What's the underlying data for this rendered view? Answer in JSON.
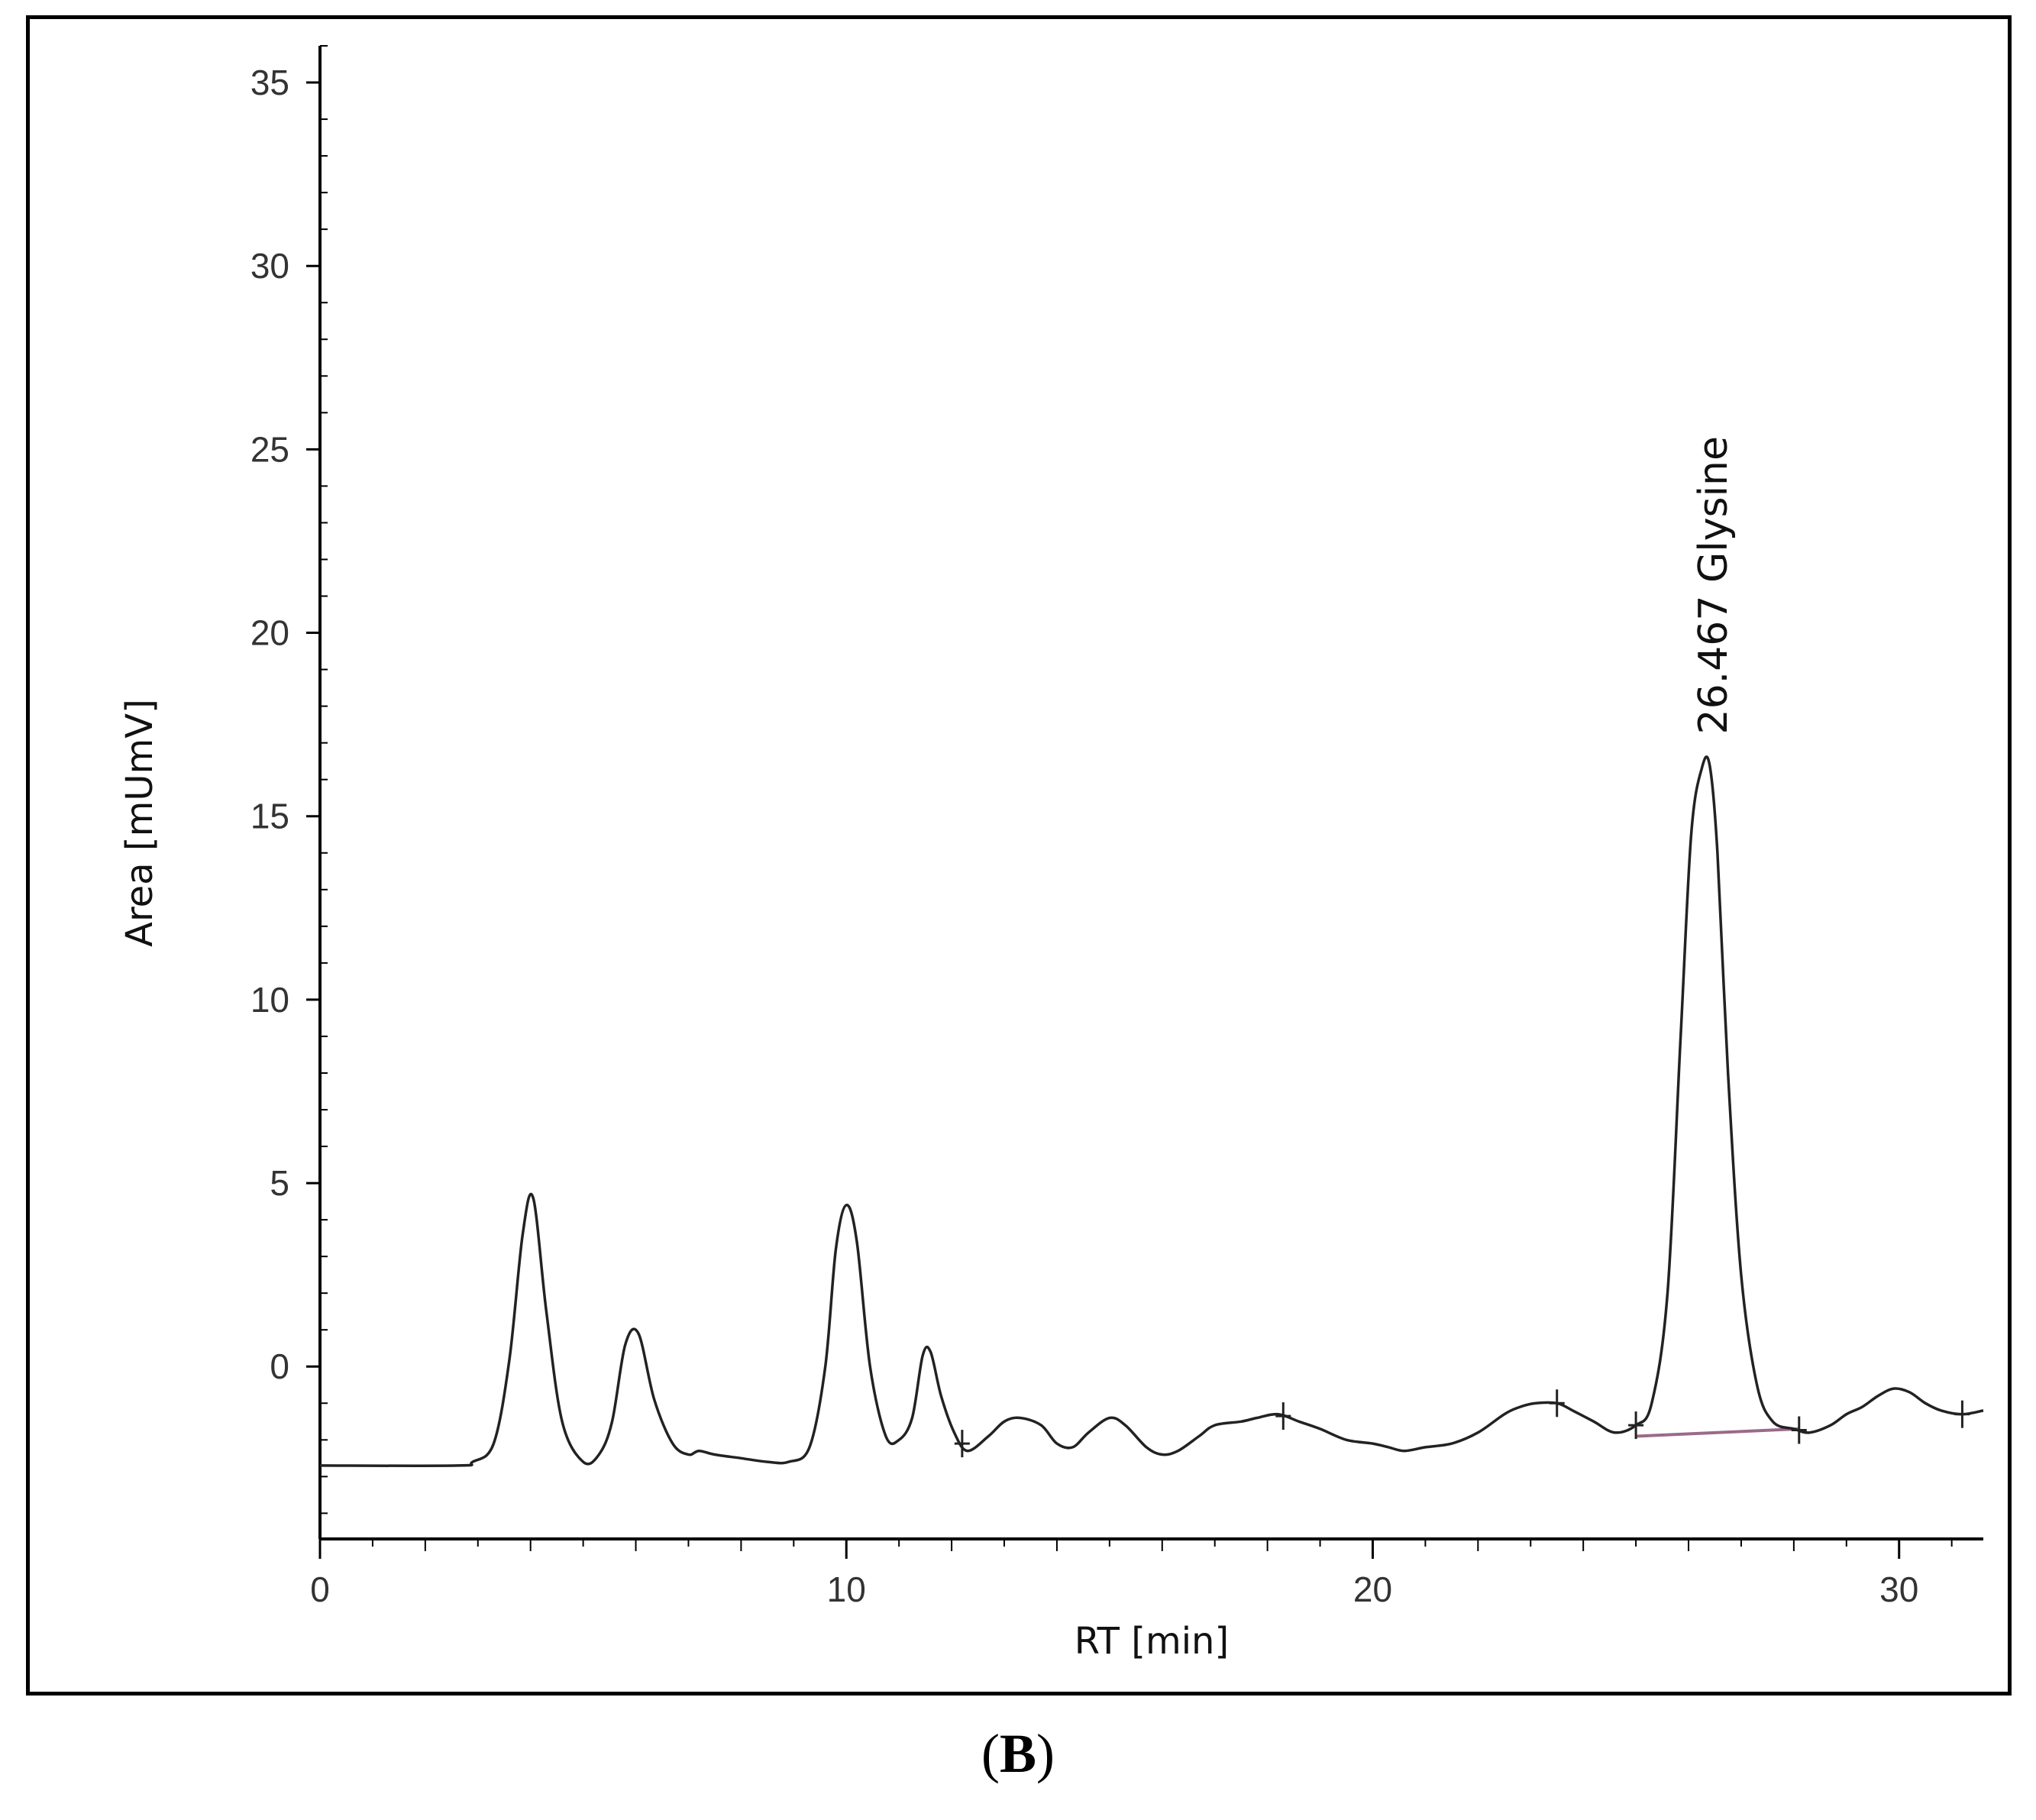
{
  "caption": {
    "open": "(",
    "letter": "B",
    "close": ")"
  },
  "chart_data": {
    "type": "line",
    "xlabel": "RT [min]",
    "ylabel": "Area [mUmV]",
    "xlim": [
      0,
      31.6
    ],
    "ylim": [
      -4.7,
      36
    ],
    "x_ticks": [
      0,
      10,
      20,
      30
    ],
    "y_ticks": [
      0,
      5,
      10,
      15,
      20,
      25,
      30,
      35
    ],
    "grid": false,
    "legend": "none",
    "colors": {
      "trace": "#222222",
      "baseline": "#9a6a8a",
      "axis": "#000000"
    },
    "series": [
      {
        "x": [
          0,
          2.6,
          2.9,
          3.3,
          3.6,
          3.85,
          4.05,
          4.3,
          4.6,
          5.0,
          5.3,
          5.55,
          5.8,
          6.05,
          6.35,
          6.7,
          7.0,
          7.2,
          7.5,
          8.0,
          8.5,
          8.9,
          9.3,
          9.6,
          9.8,
          10.0,
          10.2,
          10.45,
          10.75,
          11.0,
          11.25,
          11.45,
          11.6,
          11.8,
          12.05,
          12.3,
          12.7,
          13.0,
          13.3,
          13.7,
          14.0,
          14.3,
          14.6,
          15.0,
          15.3,
          15.7,
          16.0,
          16.3,
          16.7,
          17.0,
          17.5,
          17.8,
          18.2,
          18.6,
          19.0,
          19.5,
          20.0,
          20.3,
          20.6,
          21.0,
          21.5,
          22.0,
          22.5,
          22.8,
          23.1,
          23.5,
          23.8,
          24.2,
          24.6,
          25.0,
          25.3,
          25.6,
          25.85,
          26.05,
          26.25,
          26.4,
          26.55,
          26.75,
          27.0,
          27.3,
          27.6,
          28.0,
          28.3,
          28.7,
          29.0,
          29.3,
          29.6,
          29.9,
          30.2,
          30.5,
          30.8,
          31.2,
          31.6
        ],
        "y": [
          -2.7,
          -2.7,
          -2.6,
          -2.1,
          0.2,
          3.6,
          4.6,
          1.5,
          -1.5,
          -2.6,
          -2.4,
          -1.5,
          0.6,
          0.9,
          -0.9,
          -2.1,
          -2.4,
          -2.3,
          -2.4,
          -2.5,
          -2.6,
          -2.6,
          -2.2,
          0.0,
          3.2,
          4.4,
          3.4,
          0.0,
          -1.9,
          -2.0,
          -1.4,
          0.3,
          0.4,
          -0.8,
          -1.8,
          -2.3,
          -1.9,
          -1.5,
          -1.4,
          -1.6,
          -2.1,
          -2.2,
          -1.8,
          -1.4,
          -1.6,
          -2.2,
          -2.4,
          -2.3,
          -1.9,
          -1.6,
          -1.5,
          -1.4,
          -1.3,
          -1.5,
          -1.7,
          -2.0,
          -2.1,
          -2.2,
          -2.3,
          -2.2,
          -2.1,
          -1.8,
          -1.3,
          -1.1,
          -1.0,
          -1.0,
          -1.2,
          -1.5,
          -1.8,
          -1.6,
          -1.0,
          2.0,
          9.0,
          14.5,
          16.3,
          16.4,
          14.0,
          8.0,
          2.5,
          -0.5,
          -1.5,
          -1.7,
          -1.8,
          -1.6,
          -1.3,
          -1.1,
          -0.8,
          -0.6,
          -0.7,
          -1.0,
          -1.2,
          -1.3,
          -1.2
        ]
      }
    ],
    "integration_baseline": {
      "x": [
        25.0,
        28.1
      ],
      "y": [
        -1.9,
        -1.7
      ]
    },
    "integration_markers": {
      "x": [
        12.2,
        18.3,
        23.5,
        25.0,
        28.1,
        31.2
      ]
    },
    "annotations": [
      {
        "x": 26.467,
        "y": 16.4,
        "text": "26.467  Glysine"
      }
    ]
  }
}
